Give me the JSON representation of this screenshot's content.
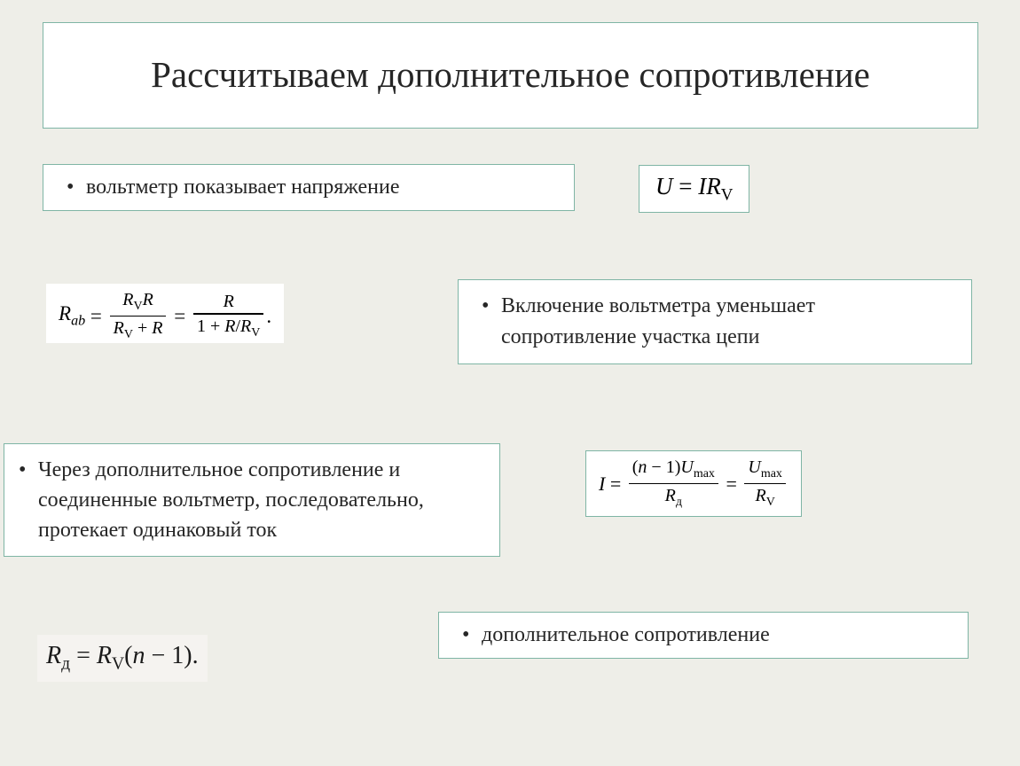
{
  "slide": {
    "background_color": "#eeeee8",
    "box_border_color": "#7fb5a5",
    "box_background": "#ffffff",
    "text_color": "#262626",
    "title_fontsize": 41,
    "body_fontsize": 24
  },
  "title": "Рассчитываем дополнительное сопротивление",
  "bullets": {
    "b1": "вольтметр показывает напряжение",
    "b2": "Включение вольтметра уменьшает сопротивление участка цепи",
    "b3": "Через дополнительное сопротивление и соединенные вольтметр, последовательно, протекает одинаковый ток",
    "b4": "дополнительное  сопротивление"
  },
  "formulas": {
    "f1": {
      "lhs_var": "U",
      "rhs_text": "IR",
      "rhs_sub": "V"
    },
    "f2": {
      "lhs_var": "R",
      "lhs_sub": "ab",
      "frac1_num_a": "R",
      "frac1_num_a_sub": "V",
      "frac1_num_b": "R",
      "frac1_den_left": "R",
      "frac1_den_left_sub": "V",
      "frac1_den_op": " + ",
      "frac1_den_right": "R",
      "frac2_num": "R",
      "frac2_den_left": "1 + ",
      "frac2_den_mid": "R",
      "frac2_den_slash": "/",
      "frac2_den_right": "R",
      "frac2_den_right_sub": "V",
      "end_punct": " ."
    },
    "f3": {
      "lhs_var": "I",
      "frac1_num_left": "(",
      "frac1_num_n": "n",
      "frac1_num_op": " − 1)",
      "frac1_num_U": "U",
      "frac1_num_U_sub": "max",
      "frac1_den": "R",
      "frac1_den_sub": "д",
      "frac2_num": "U",
      "frac2_num_sub": "max",
      "frac2_den": "R",
      "frac2_den_sub": "V"
    },
    "f4": {
      "lhs_var": "R",
      "lhs_sub": "д",
      "rhs_R": "R",
      "rhs_R_sub": "V",
      "rhs_paren_open": "(",
      "rhs_n": "n",
      "rhs_rest": " − 1)."
    }
  }
}
